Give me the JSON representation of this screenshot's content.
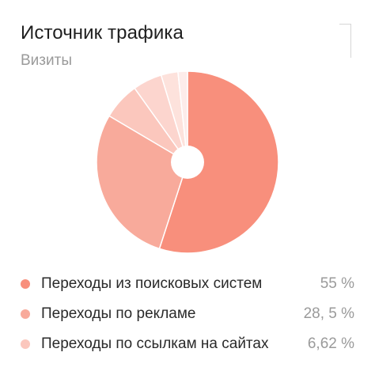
{
  "header": {
    "title": "Источник трафика",
    "subtitle": "Визиты"
  },
  "colors": {
    "accent": "#f88f7c",
    "slice_colors": [
      "#f88f7c",
      "#f8aa9b",
      "#fbc7bd",
      "#fcd5ce",
      "#fde2dc",
      "#fdecea"
    ]
  },
  "legend": {
    "items": [
      {
        "label": "Переходы из поисковых систем",
        "value": "55 %",
        "color": "#f88f7c"
      },
      {
        "label": "Переходы по рекламе",
        "value": "28, 5 %",
        "color": "#f8aa9b"
      },
      {
        "label": "Переходы по ссылкам на сайтах",
        "value": "6,62 %",
        "color": "#fbc7bd"
      }
    ]
  },
  "chart_data": {
    "type": "pie",
    "donut": true,
    "title": "Источник трафика",
    "subtitle": "Визиты",
    "legend_position": "bottom",
    "series": [
      {
        "name": "Переходы из поисковых систем",
        "value": 55
      },
      {
        "name": "Переходы по рекламе",
        "value": 28.5
      },
      {
        "name": "Переходы по ссылкам на сайтах",
        "value": 6.62
      },
      {
        "value": 5.2
      },
      {
        "value": 3.0
      },
      {
        "value": 1.68
      }
    ]
  }
}
